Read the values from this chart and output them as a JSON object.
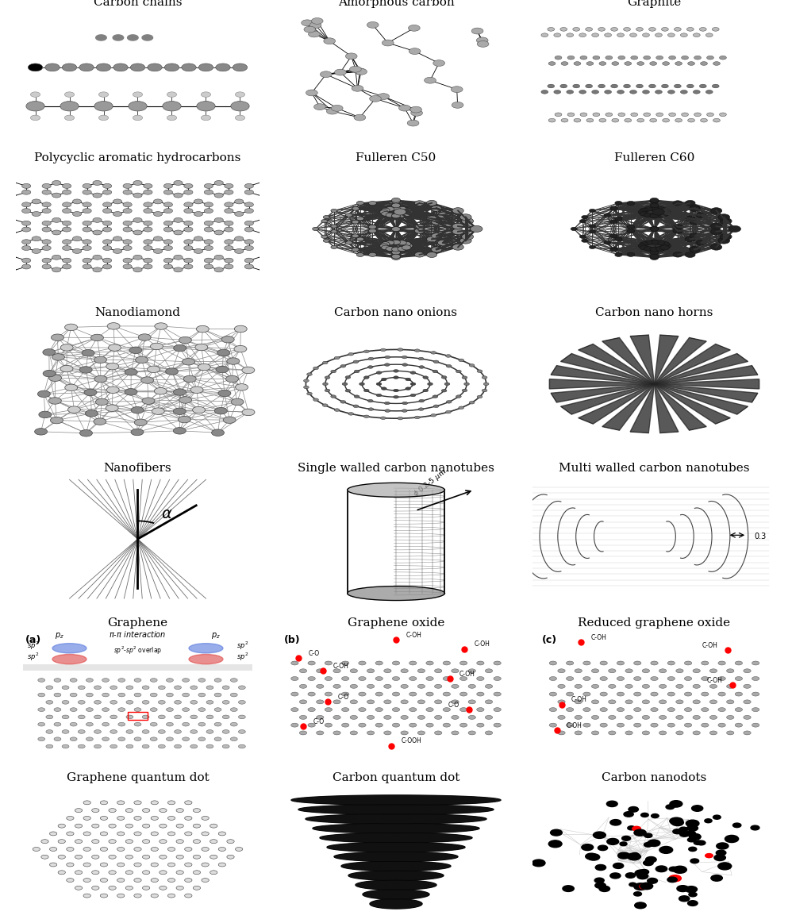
{
  "background_color": "#ffffff",
  "figsize": [
    9.98,
    11.63
  ],
  "dpi": 100,
  "grid": {
    "rows": 6,
    "cols": 3
  },
  "cells": [
    {
      "row": 0,
      "col": 0,
      "label": "Carbon chains"
    },
    {
      "row": 0,
      "col": 1,
      "label": "Amorphous carbon"
    },
    {
      "row": 0,
      "col": 2,
      "label": "Graphite"
    },
    {
      "row": 1,
      "col": 0,
      "label": "Polycyclic aromatic hydrocarbons"
    },
    {
      "row": 1,
      "col": 1,
      "label": "Fulleren C50"
    },
    {
      "row": 1,
      "col": 2,
      "label": "Fulleren C60"
    },
    {
      "row": 2,
      "col": 0,
      "label": "Nanodiamond"
    },
    {
      "row": 2,
      "col": 1,
      "label": "Carbon nano onions"
    },
    {
      "row": 2,
      "col": 2,
      "label": "Carbon nano horns"
    },
    {
      "row": 3,
      "col": 0,
      "label": "Nanofibers"
    },
    {
      "row": 3,
      "col": 1,
      "label": "Single walled carbon nanotubes"
    },
    {
      "row": 3,
      "col": 2,
      "label": "Multi walled carbon nanotubes"
    },
    {
      "row": 4,
      "col": 0,
      "label": "Graphene"
    },
    {
      "row": 4,
      "col": 1,
      "label": "Graphene oxide"
    },
    {
      "row": 4,
      "col": 2,
      "label": "Reduced graphene oxide"
    },
    {
      "row": 5,
      "col": 0,
      "label": "Graphene quantum dot"
    },
    {
      "row": 5,
      "col": 1,
      "label": "Carbon quantum dot"
    },
    {
      "row": 5,
      "col": 2,
      "label": "Carbon nanodots"
    }
  ],
  "label_fontsize": 11,
  "label_color": "#000000"
}
